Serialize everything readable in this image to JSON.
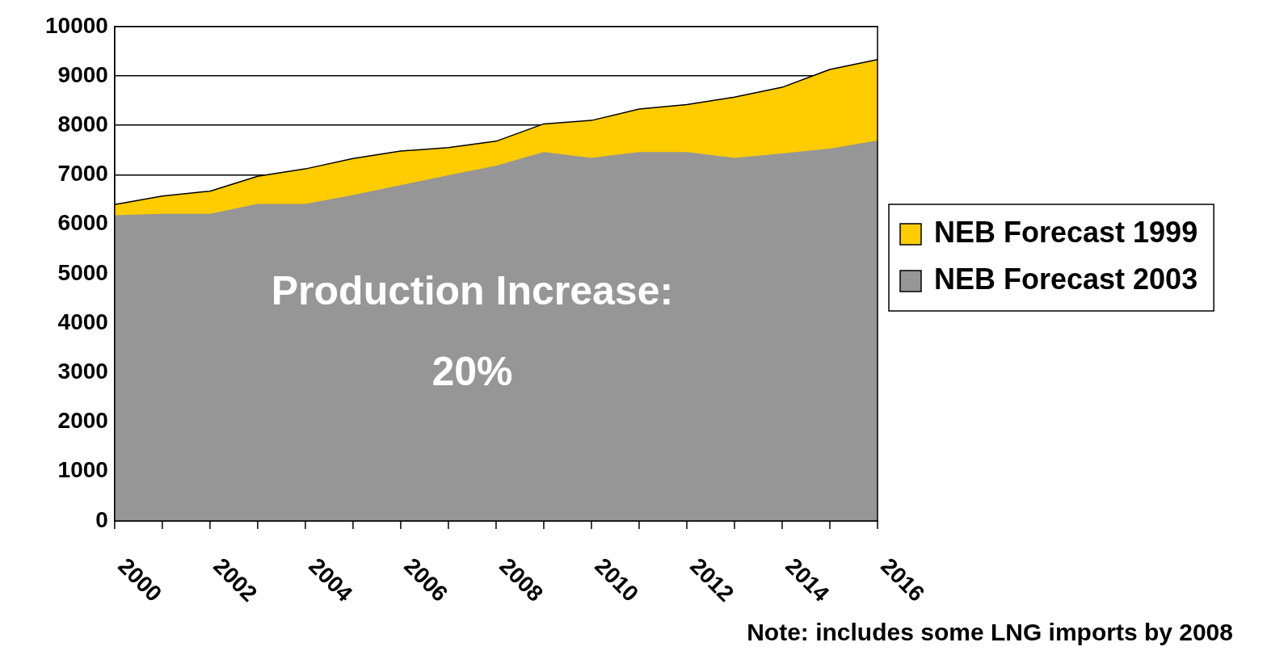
{
  "chart_data": {
    "type": "area",
    "categories": [
      "2000",
      null,
      "2002",
      null,
      "2004",
      null,
      "2006",
      null,
      "2008",
      null,
      "2010",
      null,
      "2012",
      null,
      "2014",
      null,
      "2016"
    ],
    "series": [
      {
        "name": "NEB Forecast 1999",
        "color": "#ffcc00",
        "values": [
          6400,
          6570,
          6670,
          6970,
          7120,
          7330,
          7480,
          7550,
          7680,
          8030,
          8100,
          8330,
          8420,
          8570,
          8770,
          9130,
          9330
        ]
      },
      {
        "name": "NEB Forecast 2003",
        "color": "#969696",
        "values": [
          6170,
          6200,
          6200,
          6400,
          6400,
          6580,
          6780,
          6980,
          7170,
          7450,
          7330,
          7450,
          7450,
          7330,
          7420,
          7520,
          7680
        ]
      }
    ],
    "ylim": [
      0,
      10000
    ],
    "yticks": [
      0,
      1000,
      2000,
      3000,
      4000,
      5000,
      6000,
      7000,
      8000,
      9000,
      10000
    ],
    "grid": "y",
    "legend": "right",
    "annotations": [
      "Production Increase: 20%",
      "Note: includes some LNG imports by 2008"
    ]
  }
}
